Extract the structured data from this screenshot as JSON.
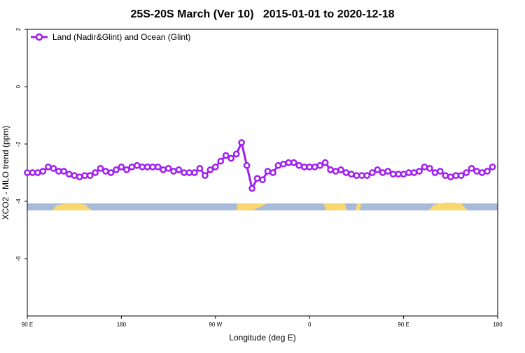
{
  "chart_data": {
    "type": "line",
    "title": "25S-20S March (Ver 10)   2015-01-01 to 2020-12-18",
    "x_label": "Longitude (deg E)",
    "y_label": "XCO2 - MLO trend (ppm)",
    "xlim": [
      90,
      540
    ],
    "ylim": [
      -8,
      2
    ],
    "xticks": [
      {
        "value": 90,
        "label": "90 E"
      },
      180,
      {
        "value": 270,
        "label": "90 W"
      },
      {
        "value": 360,
        "label": "0"
      },
      {
        "value": 450,
        "label": "90 E"
      },
      {
        "value": 540,
        "label": "180"
      }
    ],
    "yticks": [
      2,
      0,
      -2,
      -4,
      -6
    ],
    "legend": "top-left",
    "series": [
      {
        "name": "Land (Nadir&Glint) and Ocean (Glint)",
        "color": "#a020f0",
        "x": [
          90,
          95,
          100,
          105,
          110,
          115,
          120,
          125,
          130,
          135,
          140,
          145,
          150,
          155,
          160,
          165,
          170,
          175,
          180,
          185,
          190,
          195,
          200,
          205,
          210,
          215,
          220,
          225,
          230,
          235,
          240,
          245,
          250,
          255,
          260,
          265,
          270,
          275,
          280,
          285,
          290,
          295,
          300,
          305,
          310,
          315,
          320,
          325,
          330,
          335,
          340,
          345,
          350,
          355,
          360,
          365,
          370,
          375,
          380,
          385,
          390,
          395,
          400,
          405,
          410,
          415,
          420,
          425,
          430,
          435,
          440,
          445,
          450,
          455,
          460,
          465,
          470,
          475,
          480,
          485,
          490,
          495,
          500,
          505,
          510,
          515,
          520,
          525,
          530,
          535
        ],
        "values": [
          -3.0,
          -3.0,
          -3.0,
          -2.95,
          -2.8,
          -2.85,
          -2.95,
          -2.95,
          -3.05,
          -3.1,
          -3.15,
          -3.1,
          -3.1,
          -3.0,
          -2.85,
          -2.95,
          -3.0,
          -2.9,
          -2.8,
          -2.9,
          -2.8,
          -2.75,
          -2.8,
          -2.8,
          -2.8,
          -2.8,
          -2.9,
          -2.85,
          -2.95,
          -2.9,
          -3.0,
          -3.0,
          -3.0,
          -2.85,
          -3.1,
          -2.9,
          -2.8,
          -2.6,
          -2.4,
          -2.5,
          -2.35,
          -1.95,
          -2.75,
          -3.55,
          -3.2,
          -3.25,
          -2.95,
          -3.0,
          -2.75,
          -2.7,
          -2.65,
          -2.65,
          -2.75,
          -2.8,
          -2.8,
          -2.8,
          -2.75,
          -2.65,
          -2.9,
          -2.95,
          -2.9,
          -3.0,
          -3.05,
          -3.1,
          -3.1,
          -3.1,
          -3.0,
          -2.9,
          -3.0,
          -2.95,
          -3.05,
          -3.05,
          -3.05,
          -3.0,
          -3.0,
          -2.95,
          -2.8,
          -2.85,
          -3.0,
          -2.95,
          -3.1,
          -3.15,
          -3.1,
          -3.1,
          -3.0,
          -2.85,
          -2.95,
          -3.0,
          -2.95,
          -2.8
        ]
      }
    ]
  }
}
